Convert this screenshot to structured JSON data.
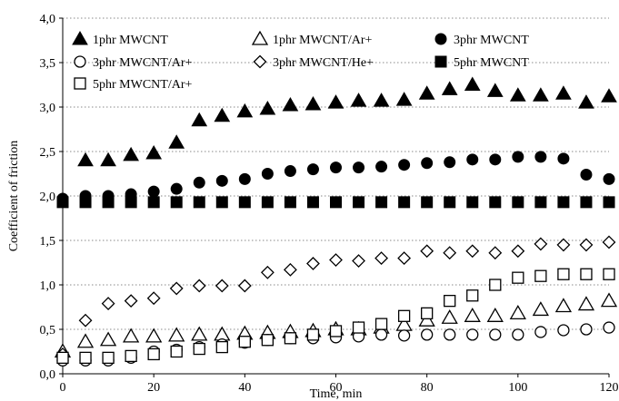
{
  "chart_data": {
    "type": "scatter",
    "xlabel": "Time, min",
    "ylabel": "Coefficient of friction",
    "xlim": [
      0,
      120
    ],
    "ylim": [
      0,
      4.0
    ],
    "x_ticks": [
      "0",
      "20",
      "40",
      "60",
      "80",
      "100",
      "120"
    ],
    "y_ticks": [
      "0,0",
      "0,5",
      "1,0",
      "1,5",
      "2,0",
      "2,5",
      "3,0",
      "3,5",
      "4,0"
    ],
    "grid": "horizontal-dotted",
    "legend_position": "top-inside",
    "x": [
      0,
      5,
      10,
      15,
      20,
      25,
      30,
      35,
      40,
      45,
      50,
      55,
      60,
      65,
      70,
      75,
      80,
      85,
      90,
      95,
      100,
      105,
      110,
      115,
      120
    ],
    "series": [
      {
        "name": "1phr MWCNT",
        "marker": "triangle-filled",
        "values": [
          null,
          2.4,
          2.4,
          2.46,
          2.48,
          2.6,
          2.85,
          2.9,
          2.95,
          2.98,
          3.02,
          3.03,
          3.05,
          3.07,
          3.07,
          3.08,
          3.15,
          3.2,
          3.25,
          3.18,
          3.13,
          3.13,
          3.15,
          3.05,
          3.12
        ]
      },
      {
        "name": "1phr MWCNT/Ar+",
        "marker": "triangle-open",
        "values": [
          0.25,
          0.36,
          0.38,
          0.42,
          0.42,
          0.43,
          0.44,
          0.44,
          0.45,
          0.46,
          0.47,
          0.48,
          0.5,
          0.5,
          0.52,
          0.55,
          0.6,
          0.63,
          0.65,
          0.65,
          0.68,
          0.72,
          0.76,
          0.78,
          0.82
        ]
      },
      {
        "name": "3phr MWCNT",
        "marker": "circle-filled",
        "values": [
          1.97,
          2.0,
          2.0,
          2.02,
          2.05,
          2.08,
          2.15,
          2.17,
          2.19,
          2.25,
          2.28,
          2.3,
          2.32,
          2.32,
          2.33,
          2.35,
          2.37,
          2.38,
          2.41,
          2.41,
          2.44,
          2.44,
          2.42,
          2.24,
          2.19
        ]
      },
      {
        "name": "3phr MWCNT/Ar+",
        "marker": "circle-open",
        "values": [
          0.15,
          0.15,
          0.15,
          0.18,
          0.25,
          0.27,
          0.3,
          0.33,
          0.35,
          0.38,
          0.4,
          0.4,
          0.41,
          0.42,
          0.44,
          0.43,
          0.44,
          0.44,
          0.44,
          0.44,
          0.44,
          0.47,
          0.49,
          0.5,
          0.52
        ]
      },
      {
        "name": "3phr MWCNT/He+",
        "marker": "diamond-open",
        "values": [
          0.22,
          0.6,
          0.79,
          0.82,
          0.85,
          0.96,
          0.99,
          0.99,
          0.99,
          1.14,
          1.17,
          1.24,
          1.28,
          1.27,
          1.3,
          1.3,
          1.38,
          1.36,
          1.38,
          1.36,
          1.38,
          1.46,
          1.45,
          1.45,
          1.48
        ]
      },
      {
        "name": "5phr MWCNT",
        "marker": "square-filled",
        "values": [
          1.93,
          1.93,
          1.93,
          1.93,
          1.93,
          1.93,
          1.93,
          1.93,
          1.93,
          1.93,
          1.93,
          1.93,
          1.93,
          1.93,
          1.93,
          1.93,
          1.93,
          1.93,
          1.93,
          1.93,
          1.93,
          1.93,
          1.93,
          1.93,
          1.93
        ]
      },
      {
        "name": "5phr MWCNT/Ar+",
        "marker": "square-open",
        "values": [
          0.18,
          0.18,
          0.18,
          0.2,
          0.22,
          0.25,
          0.28,
          0.3,
          0.36,
          0.38,
          0.4,
          0.44,
          0.48,
          0.52,
          0.56,
          0.65,
          0.68,
          0.82,
          0.88,
          1.0,
          1.08,
          1.1,
          1.12,
          1.12,
          1.12
        ]
      }
    ]
  }
}
